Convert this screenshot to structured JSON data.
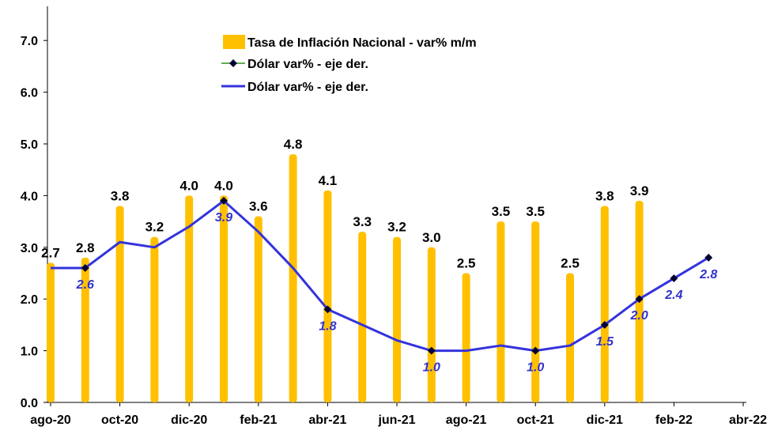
{
  "chart_data": {
    "type": "bar",
    "x_ticks": [
      "ago-20",
      "oct-20",
      "dic-20",
      "feb-21",
      "abr-21",
      "jun-21",
      "ago-21",
      "oct-21",
      "dic-21",
      "feb-22",
      "abr-22"
    ],
    "y_ticks": [
      "0.0",
      "1.0",
      "2.0",
      "3.0",
      "4.0",
      "5.0",
      "6.0",
      "7.0"
    ],
    "ylim": [
      0,
      7.5
    ],
    "legend": {
      "placement": "top-center",
      "entries": [
        "Tasa de Inflación Nacional - var% m/m",
        "Dólar var% - eje der.",
        "Dólar var% - eje der."
      ]
    },
    "series": [
      {
        "name": "Tasa de Inflación Nacional - var% m/m",
        "type": "bar",
        "color": "#ffc000",
        "x": [
          "ago-20",
          "sep-20",
          "oct-20",
          "nov-20",
          "dic-20",
          "ene-21",
          "feb-21",
          "mar-21",
          "abr-21",
          "may-21",
          "jun-21",
          "jul-21",
          "ago-21",
          "sep-21",
          "oct-21",
          "nov-21",
          "dic-21",
          "ene-22"
        ],
        "values": [
          2.7,
          2.8,
          3.8,
          3.2,
          4.0,
          4.0,
          3.6,
          4.8,
          4.1,
          3.3,
          3.2,
          3.0,
          2.5,
          3.5,
          3.5,
          2.5,
          3.8,
          3.9
        ],
        "labels": [
          "2.7",
          "2.8",
          "3.8",
          "3.2",
          "4.0",
          "4.0",
          "3.6",
          "4.8",
          "4.1",
          "3.3",
          "3.2",
          "3.0",
          "2.5",
          "3.5",
          "3.5",
          "2.5",
          "3.8",
          "3.9"
        ]
      },
      {
        "name": "Dólar var% - eje der.",
        "type": "line",
        "color": "#3333dd",
        "marker_color": "#000033",
        "x": [
          "ago-20",
          "sep-20",
          "oct-20",
          "nov-20",
          "dic-20",
          "ene-21",
          "feb-21",
          "mar-21",
          "abr-21",
          "may-21",
          "jun-21",
          "jul-21",
          "ago-21",
          "sep-21",
          "oct-21",
          "nov-21",
          "dic-21",
          "ene-22",
          "feb-22",
          "mar-22"
        ],
        "values": [
          2.6,
          2.6,
          3.1,
          3.0,
          3.4,
          3.9,
          3.3,
          2.6,
          1.8,
          1.5,
          1.2,
          1.0,
          1.0,
          1.1,
          1.0,
          1.1,
          1.5,
          2.0,
          2.4,
          2.8
        ],
        "markers": [
          1,
          5,
          8,
          11,
          14,
          16,
          17,
          18,
          19
        ],
        "labels": {
          "1": "2.6",
          "5": "3.9",
          "8": "1.8",
          "11": "1.0",
          "14": "1.0",
          "16": "1.5",
          "17": "2.0",
          "18": "2.4",
          "19": "2.8"
        }
      }
    ]
  }
}
